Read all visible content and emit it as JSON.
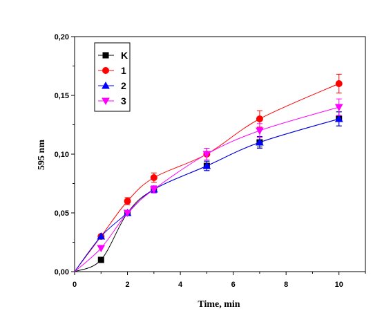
{
  "chart_data": {
    "type": "line",
    "xlabel": "Time, min",
    "ylabel": "595 nm",
    "xlim": [
      0,
      11
    ],
    "ylim": [
      0,
      0.2
    ],
    "xticks": [
      0,
      2,
      4,
      6,
      8,
      10
    ],
    "xtick_labels": [
      "0",
      "2",
      "4",
      "6",
      "8",
      "10"
    ],
    "yticks": [
      0,
      0.05,
      0.1,
      0.15,
      0.2
    ],
    "ytick_labels": [
      "0,00",
      "0,05",
      "0,10",
      "0,15",
      "0,20"
    ],
    "legend_position": "top-left",
    "series": [
      {
        "name": "K",
        "color": "#000000",
        "marker": "square",
        "x": [
          0,
          1,
          2,
          3,
          5,
          7,
          10
        ],
        "y": [
          0,
          0.01,
          0.05,
          0.07,
          0.09,
          0.11,
          0.13
        ],
        "err": [
          0,
          0,
          0,
          0,
          0.004,
          0.004,
          0.006
        ]
      },
      {
        "name": "1",
        "color": "#ff0000",
        "marker": "circle",
        "x": [
          0,
          1,
          2,
          3,
          5,
          7,
          10
        ],
        "y": [
          0,
          0.03,
          0.06,
          0.08,
          0.1,
          0.13,
          0.16
        ],
        "err": [
          0,
          0,
          0.003,
          0.004,
          0.005,
          0.007,
          0.008
        ]
      },
      {
        "name": "2",
        "color": "#0000ff",
        "marker": "triangle-up",
        "x": [
          0,
          1,
          2,
          3,
          5,
          7,
          10
        ],
        "y": [
          0,
          0.03,
          0.05,
          0.07,
          0.09,
          0.11,
          0.13
        ],
        "err": [
          0,
          0,
          0,
          0.003,
          0.004,
          0.005,
          0.006
        ]
      },
      {
        "name": "3",
        "color": "#ff00ff",
        "marker": "triangle-down",
        "x": [
          0,
          1,
          2,
          3,
          5,
          7,
          10
        ],
        "y": [
          0,
          0.02,
          0.05,
          0.07,
          0.1,
          0.12,
          0.14
        ],
        "err": [
          0,
          0,
          0,
          0.003,
          0.005,
          0.006,
          0.007
        ]
      }
    ]
  }
}
